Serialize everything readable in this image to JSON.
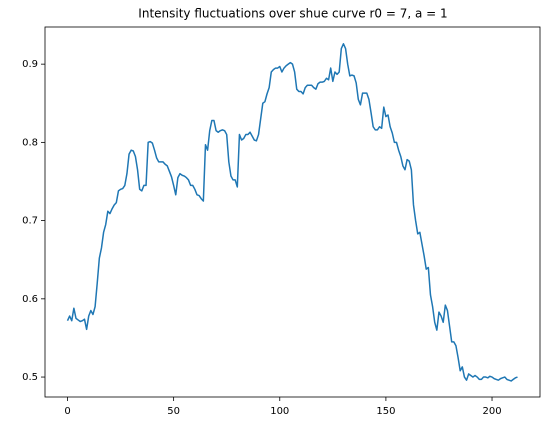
{
  "chart_data": {
    "type": "line",
    "title": "Intensity fluctuations over shue curve r0 = 7, a = 1",
    "x": [
      0,
      1,
      2,
      3,
      4,
      5,
      6,
      7,
      8,
      9,
      10,
      11,
      12,
      13,
      14,
      15,
      16,
      17,
      18,
      19,
      20,
      21,
      22,
      23,
      24,
      25,
      26,
      27,
      28,
      29,
      30,
      31,
      32,
      33,
      34,
      35,
      36,
      37,
      38,
      39,
      40,
      41,
      42,
      43,
      44,
      45,
      46,
      47,
      48,
      49,
      50,
      51,
      52,
      53,
      54,
      55,
      56,
      57,
      58,
      59,
      60,
      61,
      62,
      63,
      64,
      65,
      66,
      67,
      68,
      69,
      70,
      71,
      72,
      73,
      74,
      75,
      76,
      77,
      78,
      79,
      80,
      81,
      82,
      83,
      84,
      85,
      86,
      87,
      88,
      89,
      90,
      91,
      92,
      93,
      94,
      95,
      96,
      97,
      98,
      99,
      100,
      101,
      102,
      103,
      104,
      105,
      106,
      107,
      108,
      109,
      110,
      111,
      112,
      113,
      114,
      115,
      116,
      117,
      118,
      119,
      120,
      121,
      122,
      123,
      124,
      125,
      126,
      127,
      128,
      129,
      130,
      131,
      132,
      133,
      134,
      135,
      136,
      137,
      138,
      139,
      140,
      141,
      142,
      143,
      144,
      145,
      146,
      147,
      148,
      149,
      150,
      151,
      152,
      153,
      154,
      155,
      156,
      157,
      158,
      159,
      160,
      161,
      162,
      163,
      164,
      165,
      166,
      167,
      168,
      169,
      170,
      171,
      172,
      173,
      174,
      175,
      176,
      177,
      178,
      179,
      180,
      181,
      182,
      183,
      184,
      185,
      186,
      187,
      188,
      189,
      190,
      191,
      192,
      193,
      194,
      195,
      196,
      197,
      198,
      199,
      200,
      201,
      202,
      203,
      204,
      205,
      206,
      207,
      208,
      209,
      210,
      211,
      212
    ],
    "series": [
      {
        "color": "#1f77b4",
        "values": [
          0.572,
          0.578,
          0.572,
          0.588,
          0.575,
          0.573,
          0.571,
          0.572,
          0.574,
          0.561,
          0.578,
          0.585,
          0.58,
          0.59,
          0.62,
          0.652,
          0.665,
          0.685,
          0.695,
          0.712,
          0.709,
          0.715,
          0.72,
          0.723,
          0.738,
          0.74,
          0.741,
          0.745,
          0.76,
          0.785,
          0.79,
          0.789,
          0.782,
          0.765,
          0.74,
          0.738,
          0.745,
          0.745,
          0.8,
          0.801,
          0.799,
          0.79,
          0.78,
          0.775,
          0.775,
          0.775,
          0.772,
          0.77,
          0.763,
          0.756,
          0.745,
          0.733,
          0.755,
          0.76,
          0.758,
          0.757,
          0.755,
          0.752,
          0.745,
          0.745,
          0.74,
          0.733,
          0.732,
          0.728,
          0.725,
          0.797,
          0.79,
          0.815,
          0.828,
          0.828,
          0.815,
          0.813,
          0.815,
          0.816,
          0.815,
          0.81,
          0.775,
          0.757,
          0.752,
          0.752,
          0.743,
          0.81,
          0.803,
          0.805,
          0.81,
          0.81,
          0.813,
          0.808,
          0.803,
          0.802,
          0.81,
          0.83,
          0.85,
          0.852,
          0.862,
          0.87,
          0.89,
          0.893,
          0.895,
          0.895,
          0.897,
          0.89,
          0.895,
          0.898,
          0.9,
          0.902,
          0.9,
          0.89,
          0.868,
          0.865,
          0.865,
          0.862,
          0.87,
          0.873,
          0.873,
          0.873,
          0.87,
          0.868,
          0.875,
          0.877,
          0.877,
          0.878,
          0.882,
          0.88,
          0.895,
          0.878,
          0.89,
          0.887,
          0.89,
          0.92,
          0.926,
          0.92,
          0.9,
          0.885,
          0.886,
          0.885,
          0.876,
          0.855,
          0.848,
          0.863,
          0.863,
          0.863,
          0.855,
          0.838,
          0.82,
          0.816,
          0.816,
          0.82,
          0.818,
          0.845,
          0.833,
          0.835,
          0.82,
          0.812,
          0.8,
          0.8,
          0.79,
          0.782,
          0.77,
          0.765,
          0.778,
          0.776,
          0.765,
          0.72,
          0.7,
          0.683,
          0.685,
          0.67,
          0.655,
          0.638,
          0.64,
          0.605,
          0.59,
          0.57,
          0.56,
          0.583,
          0.578,
          0.57,
          0.592,
          0.585,
          0.565,
          0.545,
          0.545,
          0.54,
          0.525,
          0.508,
          0.513,
          0.5,
          0.496,
          0.504,
          0.502,
          0.5,
          0.502,
          0.5,
          0.497,
          0.497,
          0.5,
          0.5,
          0.499,
          0.501,
          0.5,
          0.498,
          0.497,
          0.496,
          0.498,
          0.499,
          0.5,
          0.497,
          0.496,
          0.495,
          0.497,
          0.499,
          0.5
        ]
      }
    ],
    "xlim": [
      -10.6,
      222.6
    ],
    "xticks": [
      0,
      50,
      100,
      150,
      200
    ],
    "ylim": [
      0.4745,
      0.9475
    ],
    "yticks": [
      0.5,
      0.6,
      0.7,
      0.8,
      0.9
    ]
  }
}
